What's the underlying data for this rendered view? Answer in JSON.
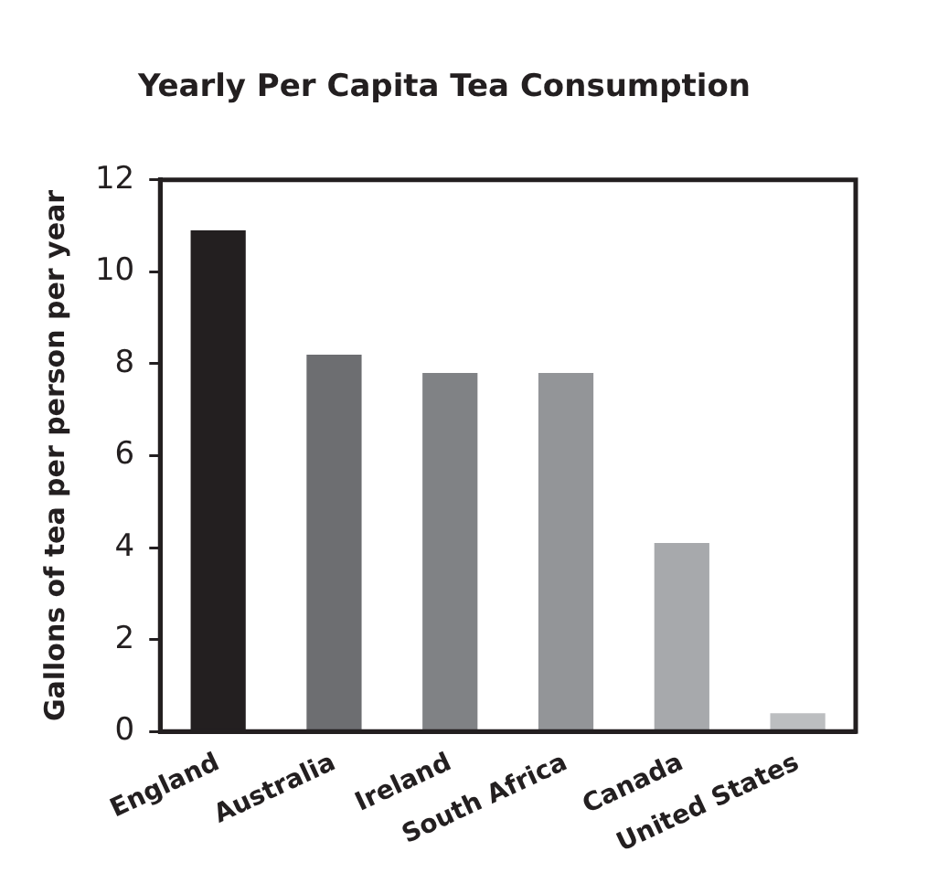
{
  "chart_data": {
    "type": "bar",
    "title": "Yearly Per Capita Tea Consumption",
    "ylabel": "Gallons of tea per person per year",
    "categories": [
      "England",
      "Australia",
      "Ireland",
      "South Africa",
      "Canada",
      "United States"
    ],
    "values": [
      10.9,
      8.2,
      7.8,
      7.8,
      4.1,
      0.4
    ],
    "colors": [
      "#231f20",
      "#6d6e71",
      "#808285",
      "#939598",
      "#a7a9ac",
      "#bcbec0"
    ],
    "ylim": [
      0,
      12
    ],
    "yticks": [
      0,
      2,
      4,
      6,
      8,
      10,
      12
    ],
    "grid": false,
    "legend": false
  }
}
